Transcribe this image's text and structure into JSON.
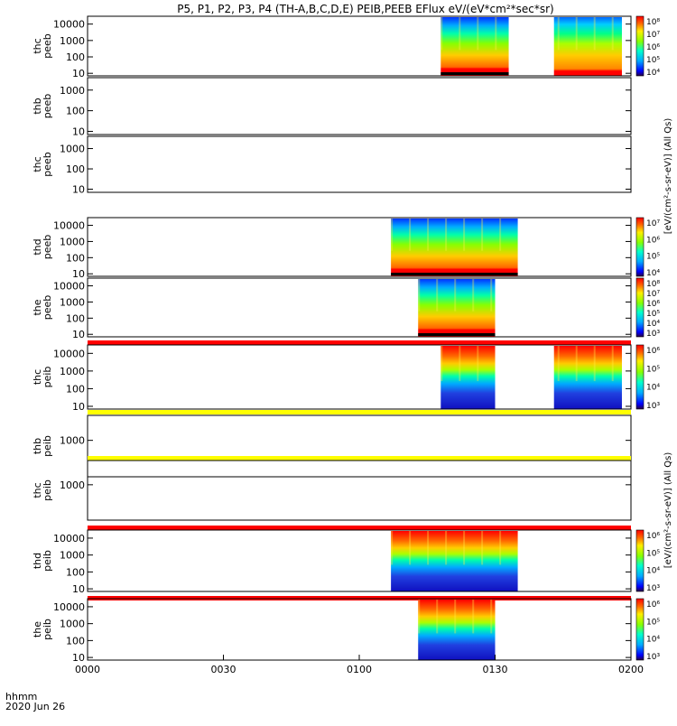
{
  "chart_data": {
    "type": "heatmap",
    "title": "P5, P1, P2, P3, P4 (TH-A,B,C,D,E) PEIB,PEEB EFlux eV/(eV*cm²*sec*sr)",
    "x_ticks": [
      "0000",
      "0030",
      "0100",
      "0130",
      "0200"
    ],
    "x_range": [
      "00:00",
      "02:00"
    ],
    "x_caption_units": "hhmm",
    "x_caption_date": "2020 Jun 26",
    "y_scale": "log",
    "panels": [
      {
        "name": "thc peeb",
        "label_lines": [
          "thc",
          "peeb"
        ],
        "yticks": [
          "10000",
          "1000",
          "100",
          "10"
        ],
        "ylim": [
          7,
          30000
        ],
        "data_blocks": [
          {
            "start": "01:18",
            "end": "01:33",
            "style": "electron"
          },
          {
            "start": "01:43",
            "end": "01:58",
            "style": "electron-flat"
          }
        ],
        "colorbar": {
          "labels": [
            "10⁸",
            "10⁷",
            "10⁶",
            "10⁵",
            "10⁴"
          ]
        }
      },
      {
        "name": "thb peeb",
        "label_lines": [
          "thb",
          "peeb"
        ],
        "yticks": [
          "1000",
          "100",
          "10"
        ],
        "ylim": [
          7,
          4000
        ],
        "data_blocks": []
      },
      {
        "name": "thc peeb",
        "label_lines": [
          "thc",
          "peeb"
        ],
        "yticks": [
          "1000",
          "100",
          "10"
        ],
        "ylim": [
          7,
          4000
        ],
        "data_blocks": []
      },
      {
        "name": "thd peeb",
        "label_lines": [
          "thd",
          "peeb"
        ],
        "yticks": [
          "10000",
          "1000",
          "100",
          "10"
        ],
        "ylim": [
          7,
          30000
        ],
        "data_blocks": [
          {
            "start": "01:07",
            "end": "01:35",
            "style": "electron"
          }
        ],
        "colorbar": {
          "labels": [
            "10⁷",
            "10⁶",
            "10⁵",
            "10⁴"
          ]
        }
      },
      {
        "name": "the peeb",
        "label_lines": [
          "the",
          "peeb"
        ],
        "yticks": [
          "10000",
          "1000",
          "100",
          "10"
        ],
        "ylim": [
          7,
          30000
        ],
        "data_blocks": [
          {
            "start": "01:13",
            "end": "01:30",
            "style": "electron"
          }
        ],
        "colorbar": {
          "labels": [
            "10⁸",
            "10⁷",
            "10⁶",
            "10⁵",
            "10⁴",
            "10³"
          ]
        }
      },
      {
        "name": "thc peib",
        "label_lines": [
          "thc",
          "peib"
        ],
        "yticks": [
          "10000",
          "1000",
          "100",
          "10"
        ],
        "ylim": [
          7,
          30000
        ],
        "bar_above": "red",
        "data_blocks": [
          {
            "start": "01:18",
            "end": "01:30",
            "style": "ion"
          },
          {
            "start": "01:43",
            "end": "01:58",
            "style": "ion"
          }
        ],
        "colorbar": {
          "labels": [
            "10⁶",
            "10⁵",
            "10⁴",
            "10³"
          ]
        }
      },
      {
        "name": "thb peib",
        "label_lines": [
          "thb",
          "peib"
        ],
        "yticks": [
          "1000"
        ],
        "ylim": [
          7,
          30000
        ],
        "bar_above": "yellow",
        "data_blocks": []
      },
      {
        "name": "thc peib",
        "label_lines": [
          "thc",
          "peib"
        ],
        "yticks": [
          "1000"
        ],
        "ylim": [
          7,
          30000
        ],
        "bar_above": "yellow",
        "data_blocks": []
      },
      {
        "name": "thd peib",
        "label_lines": [
          "thd",
          "peib"
        ],
        "yticks": [
          "10000",
          "1000",
          "100",
          "10"
        ],
        "ylim": [
          7,
          30000
        ],
        "bar_above": "red",
        "data_blocks": [
          {
            "start": "01:07",
            "end": "01:35",
            "style": "ion"
          }
        ],
        "colorbar": {
          "labels": [
            "10⁶",
            "10⁵",
            "10⁴",
            "10³"
          ]
        }
      },
      {
        "name": "the peib",
        "label_lines": [
          "the",
          "peib"
        ],
        "yticks": [
          "10000",
          "1000",
          "100",
          "10"
        ],
        "ylim": [
          7,
          30000
        ],
        "bar_above": "red",
        "data_blocks": [
          {
            "start": "01:13",
            "end": "01:30",
            "style": "ion"
          }
        ],
        "colorbar": {
          "labels": [
            "10⁶",
            "10⁵",
            "10⁴",
            "10³"
          ]
        }
      }
    ],
    "colorbar_titles": [
      "[eV/(cm²-s-sr-eV)] (All Qs)",
      "[eV/(cm²-s-sr-eV)] (All Qs)"
    ],
    "colors": {
      "red_bar": "#ff0000",
      "yellow_bar": "#ffff00"
    }
  }
}
